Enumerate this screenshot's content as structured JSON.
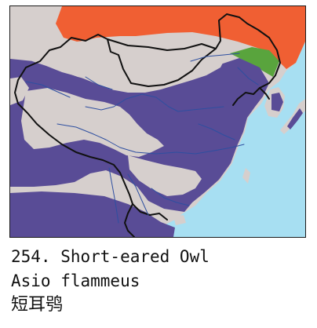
{
  "caption": {
    "title": "254. Short-eared Owl",
    "latin": "Asio flammeus",
    "chinese": "短耳鸮"
  },
  "legend_colors": {
    "ocean": "#a7dff2",
    "land": "#d6cfcd",
    "breeding_range": "#f05f33",
    "resident_range": "#59a43d",
    "wintering_range": "#594c96",
    "border": "#111111",
    "river": "#2e4fa0"
  }
}
